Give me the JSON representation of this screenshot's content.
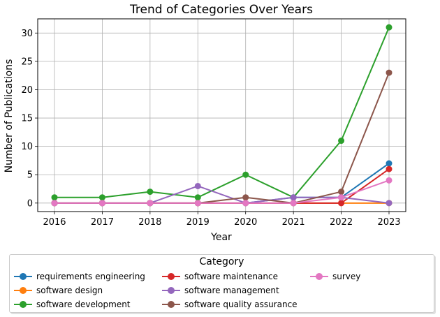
{
  "chart_data": {
    "type": "line",
    "title": "Trend of Categories Over Years",
    "xlabel": "Year",
    "ylabel": "Number of Publications",
    "x": [
      "2016",
      "2017",
      "2018",
      "2019",
      "2020",
      "2021",
      "2022",
      "2023"
    ],
    "ylim": [
      -1.5,
      32.5
    ],
    "yticks": [
      0,
      5,
      10,
      15,
      20,
      25,
      30
    ],
    "grid": true,
    "legend_title": "Category",
    "legend_placement": "below",
    "series": [
      {
        "name": "requirements engineering",
        "color": "#1f77b4",
        "values": [
          0,
          0,
          0,
          0,
          0,
          1,
          1,
          7
        ]
      },
      {
        "name": "software design",
        "color": "#ff7f0e",
        "values": [
          0,
          0,
          0,
          0,
          0,
          0,
          0,
          0
        ]
      },
      {
        "name": "software development",
        "color": "#2ca02c",
        "values": [
          1,
          1,
          2,
          1,
          5,
          1,
          11,
          31
        ]
      },
      {
        "name": "software maintenance",
        "color": "#d62728",
        "values": [
          0,
          0,
          0,
          0,
          0,
          0,
          0,
          6
        ]
      },
      {
        "name": "software management",
        "color": "#9467bd",
        "values": [
          0,
          0,
          0,
          3,
          0,
          1,
          1,
          0
        ]
      },
      {
        "name": "software quality assurance",
        "color": "#8c564b",
        "values": [
          0,
          0,
          0,
          0,
          1,
          0,
          2,
          23
        ]
      },
      {
        "name": "survey",
        "color": "#e377c2",
        "values": [
          0,
          0,
          0,
          0,
          0,
          0,
          1,
          4
        ]
      }
    ]
  }
}
